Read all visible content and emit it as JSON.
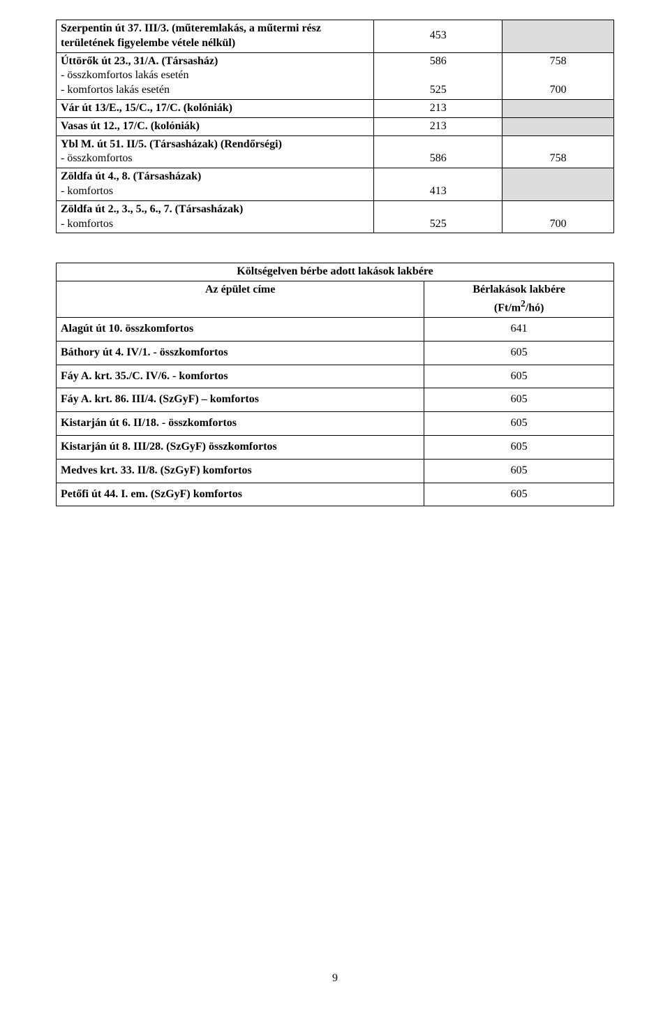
{
  "page_number": "9",
  "table1": {
    "rows": [
      {
        "label": "Szerpentin út 37. III/3. (műteremlakás, a műtermi rész területének figyelembe vétele nélkül)",
        "label_bold": true,
        "col2": "453",
        "col2_align": "center",
        "col3": "",
        "col3_shaded": true
      },
      {
        "label": "Úttörők út 23., 31/A. (Társasház)",
        "label_bold": true,
        "sub": [
          {
            "text": "- összkomfortos lakás esetén",
            "c2": "586",
            "c3": "758"
          },
          {
            "text": "- komfortos lakás esetén",
            "c2": "525",
            "c3": "700"
          }
        ]
      },
      {
        "label": "Vár út 13/E., 15/C., 17/C. (kolóniák)",
        "label_bold": true,
        "col2": "213",
        "col2_align": "center",
        "col3": "",
        "col3_shaded": true
      },
      {
        "label": "Vasas út 12., 17/C. (kolóniák)",
        "label_bold": true,
        "col2": "213",
        "col2_align": "center",
        "col3": "",
        "col3_shaded": true
      },
      {
        "label": "Ybl M. út 51. II/5. (Társasházak) (Rendőrségi)",
        "label_bold": true,
        "sub": [
          {
            "text": "- összkomfortos",
            "c2": "586",
            "c3": "758"
          }
        ]
      },
      {
        "label": "Zöldfa út 4., 8. (Társasházak)",
        "label_bold": true,
        "sub": [
          {
            "text": "- komfortos",
            "c2": "413",
            "c3": "",
            "c3_shaded": true
          }
        ]
      },
      {
        "label": "Zöldfa út 2., 3., 5., 6., 7. (Társasházak)",
        "label_bold": true,
        "sub": [
          {
            "text": "- komfortos",
            "c2": "525",
            "c3": "700"
          }
        ]
      }
    ]
  },
  "table2": {
    "title": "Költségelven bérbe adott lakások lakbére",
    "header_left": "Az épület címe",
    "header_right_line1": "Bérlakások lakbére",
    "header_right_line2": "(Ft/m",
    "header_right_sup": "2",
    "header_right_tail": "/hó)",
    "rows": [
      {
        "label": "Alagút út 10. összkomfortos",
        "value": "641"
      },
      {
        "label": "Báthory út 4. IV/1. - összkomfortos",
        "value": "605"
      },
      {
        "label": "Fáy A. krt. 35./C. IV/6. - komfortos",
        "value": "605"
      },
      {
        "label": "Fáy A. krt. 86. III/4. (SzGyF) – komfortos",
        "value": "605"
      },
      {
        "label": "Kistarján út 6. II/18. - összkomfortos",
        "value": "605"
      },
      {
        "label": "Kistarján út 8. III/28. (SzGyF) összkomfortos",
        "value": "605"
      },
      {
        "label": "Medves krt. 33. II/8. (SzGyF) komfortos",
        "value": "605"
      },
      {
        "label": "Petőfi út 44. I. em. (SzGyF) komfortos",
        "value": "605"
      }
    ]
  }
}
